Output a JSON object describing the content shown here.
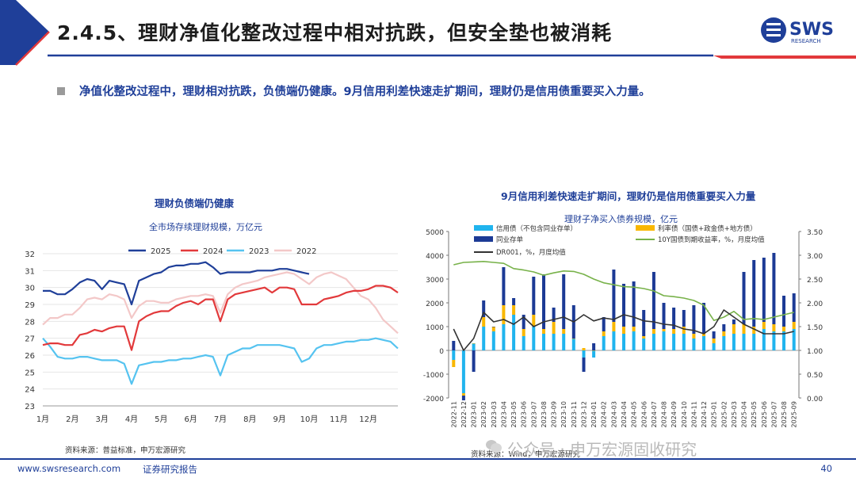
{
  "header": {
    "title": "2.4.5、理财净值化整改过程中相对抗跌，但安全垫也被消耗",
    "logo_text": "SWS",
    "logo_subtext": "RESEARCH"
  },
  "bullet": {
    "text": "净值化整改过程中，理财相对抗跌，负债端仍健康。9月信用利差快速走扩期间，理财仍是信用债重要买入力量。"
  },
  "left_chart": {
    "title": "理财负债端仍健康",
    "subtitle": "全市场存续理财规模，万亿元",
    "source": "资料来源：普益标准，申万宏源研究"
  },
  "right_chart": {
    "title": "9月信用利差快速走扩期间，理财仍是信用债重要买入力量",
    "subtitle": "理财子净买入债券规模，亿元",
    "source": "资料来源：Wind，申万宏源研究"
  },
  "footer": {
    "website": "www.swsresearch.com",
    "label": "证券研究报告",
    "page": "40",
    "watermark": "公众号 · 申万宏源固收研究"
  },
  "colors": {
    "navy": "#1f3f99",
    "red": "#e2393b",
    "cyan": "#55c3f0",
    "pink": "#f3c8c8",
    "light_blue_bar": "#20b4ee",
    "yellow_bar": "#f9b700",
    "dark_blue_bar": "#1c3a95",
    "green_line": "#78b24a",
    "black_line": "#333333"
  },
  "chart_data": [
    {
      "type": "line",
      "title": "全市场存续理财规模，万亿元",
      "x_tick_labels": [
        "1月",
        "2月",
        "3月",
        "4月",
        "5月",
        "6月",
        "7月",
        "8月",
        "9月",
        "10月",
        "11月",
        "12月"
      ],
      "ylim": [
        23,
        32
      ],
      "y_ticks": [
        "23",
        "24",
        "25",
        "26",
        "27",
        "28",
        "29",
        "30",
        "31",
        "32"
      ],
      "series": [
        {
          "name": "2025",
          "color": "#1f3f99",
          "values": [
            29.8,
            29.8,
            29.6,
            29.6,
            29.9,
            30.3,
            30.5,
            30.4,
            29.9,
            30.4,
            30.3,
            30.2,
            29.0,
            30.4,
            30.6,
            30.8,
            30.9,
            31.2,
            31.3,
            31.3,
            31.4,
            31.4,
            31.5,
            31.2,
            30.8,
            30.9,
            30.9,
            30.9,
            30.9,
            31.0,
            31.0,
            31.0,
            31.1,
            31.1,
            31.0,
            30.9,
            30.8
          ]
        },
        {
          "name": "2024",
          "color": "#e2393b",
          "values": [
            26.6,
            26.7,
            26.7,
            26.6,
            26.6,
            27.2,
            27.3,
            27.5,
            27.4,
            27.6,
            27.7,
            27.7,
            26.3,
            28.0,
            28.3,
            28.5,
            28.6,
            28.6,
            28.9,
            29.1,
            29.2,
            29.0,
            29.3,
            29.3,
            28.0,
            29.3,
            29.6,
            29.7,
            29.8,
            29.9,
            30.0,
            29.7,
            30.0,
            30.0,
            29.9,
            29.0,
            29.0,
            29.0,
            29.3,
            29.4,
            29.5,
            29.7,
            29.8,
            29.8,
            29.9,
            30.1,
            30.1,
            30.0,
            29.7
          ]
        },
        {
          "name": "2023",
          "color": "#55c3f0",
          "values": [
            27.0,
            26.5,
            25.9,
            25.8,
            25.8,
            25.9,
            25.9,
            25.8,
            25.7,
            25.7,
            25.7,
            25.5,
            24.3,
            25.4,
            25.5,
            25.6,
            25.6,
            25.7,
            25.7,
            25.8,
            25.8,
            25.9,
            26.0,
            25.9,
            24.8,
            26.0,
            26.2,
            26.4,
            26.4,
            26.6,
            26.6,
            26.6,
            26.6,
            26.5,
            26.4,
            25.6,
            25.8,
            26.4,
            26.6,
            26.6,
            26.7,
            26.8,
            26.8,
            26.9,
            26.9,
            27.0,
            26.9,
            26.8,
            26.4
          ]
        },
        {
          "name": "2022",
          "color": "#f3c8c8",
          "values": [
            27.8,
            28.2,
            28.2,
            28.4,
            28.4,
            28.8,
            29.3,
            29.4,
            29.3,
            29.6,
            29.5,
            29.3,
            28.2,
            28.9,
            29.2,
            29.2,
            29.1,
            29.1,
            29.3,
            29.4,
            29.5,
            29.5,
            29.6,
            29.5,
            28.5,
            29.6,
            30.0,
            30.2,
            30.3,
            30.4,
            30.6,
            30.7,
            30.8,
            30.9,
            30.8,
            30.5,
            30.2,
            30.6,
            30.8,
            30.9,
            30.7,
            30.5,
            30.0,
            29.5,
            29.3,
            28.8,
            28.1,
            27.7,
            27.3
          ]
        }
      ]
    },
    {
      "type": "bar",
      "title": "理财子净买入债券规模，亿元",
      "categories": [
        "2022-11",
        "2022-12",
        "2023-01",
        "2023-02",
        "2023-03",
        "2023-04",
        "2023-05",
        "2023-06",
        "2023-07",
        "2023-08",
        "2023-09",
        "2023-10",
        "2023-11",
        "2023-12",
        "2024-01",
        "2024-02",
        "2024-03",
        "2024-04",
        "2024-05",
        "2024-06",
        "2024-07",
        "2024-08",
        "2024-09",
        "2024-10",
        "2024-11",
        "2024-12",
        "2025-01",
        "2025-02",
        "2025-03",
        "2025-04",
        "2025-05",
        "2025-06",
        "2025-07",
        "2025-08",
        "2025-09"
      ],
      "ylim_left": [
        -2000,
        5000
      ],
      "y_ticks_left": [
        "-2000",
        "-1000",
        "0",
        "1000",
        "2000",
        "3000",
        "4000",
        "5000"
      ],
      "ylim_right": [
        0.0,
        3.5
      ],
      "y_ticks_right": [
        "0.00",
        "0.50",
        "1.00",
        "1.50",
        "2.00",
        "2.50",
        "3.00",
        "3.50"
      ],
      "series": [
        {
          "name": "信用债（不包含同业存单）",
          "kind": "bar",
          "color": "#20b4ee",
          "values": [
            -400,
            -1800,
            300,
            1000,
            800,
            1100,
            1500,
            600,
            1000,
            700,
            700,
            700,
            500,
            -300,
            -300,
            600,
            800,
            700,
            800,
            500,
            700,
            800,
            700,
            700,
            500,
            600,
            300,
            600,
            700,
            700,
            700,
            900,
            800,
            800,
            900
          ]
        },
        {
          "name": "利率债（国债+政金债+地方债）",
          "kind": "bar",
          "color": "#f9b700",
          "values": [
            -300,
            -100,
            0,
            400,
            200,
            800,
            400,
            300,
            500,
            200,
            500,
            200,
            0,
            100,
            0,
            200,
            400,
            300,
            200,
            100,
            200,
            100,
            200,
            300,
            200,
            100,
            200,
            200,
            400,
            400,
            300,
            300,
            300,
            200,
            300
          ]
        },
        {
          "name": "同业存单",
          "kind": "bar",
          "color": "#1c3a95",
          "values": [
            400,
            -200,
            -900,
            700,
            0,
            1600,
            300,
            600,
            1600,
            2300,
            600,
            2300,
            1400,
            -600,
            300,
            600,
            2200,
            1800,
            1900,
            1100,
            2400,
            1100,
            900,
            700,
            1200,
            1300,
            300,
            300,
            200,
            2200,
            2800,
            2700,
            3000,
            1300,
            1200
          ]
        },
        {
          "name": "10Y国债到期收益率，%，月度均值",
          "kind": "line",
          "axis": "right",
          "color": "#78b24a",
          "values": [
            2.8,
            2.85,
            2.86,
            2.87,
            2.85,
            2.83,
            2.72,
            2.69,
            2.65,
            2.58,
            2.63,
            2.67,
            2.66,
            2.6,
            2.5,
            2.42,
            2.38,
            2.34,
            2.33,
            2.3,
            2.25,
            2.15,
            2.13,
            2.1,
            2.05,
            1.95,
            1.63,
            1.7,
            1.82,
            1.65,
            1.67,
            1.65,
            1.7,
            1.75,
            1.8
          ]
        },
        {
          "name": "DR001，%，月度均值",
          "kind": "line",
          "axis": "right",
          "color": "#333333",
          "values": [
            1.45,
            1.0,
            1.25,
            1.8,
            1.6,
            1.65,
            1.55,
            1.7,
            1.5,
            1.6,
            1.65,
            1.7,
            1.6,
            1.75,
            1.62,
            1.68,
            1.65,
            1.75,
            1.7,
            1.62,
            1.6,
            1.55,
            1.53,
            1.45,
            1.42,
            1.35,
            1.5,
            1.85,
            1.7,
            1.55,
            1.45,
            1.35,
            1.35,
            1.35,
            1.4
          ]
        }
      ]
    }
  ]
}
